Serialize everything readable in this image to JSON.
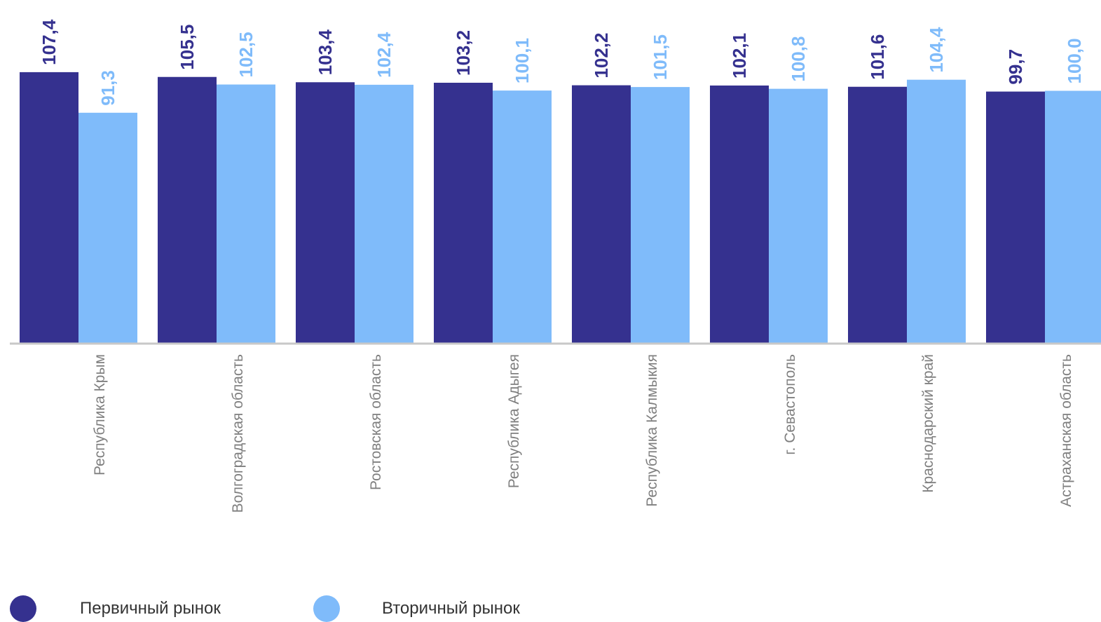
{
  "chart_data": {
    "type": "bar",
    "title": "",
    "xlabel": "",
    "ylabel": "",
    "categories": [
      "Республика Крым",
      "Волгоградская область",
      "Ростовская область",
      "Республика Адыгея",
      "Республика Калмыкия",
      "г. Севастополь",
      "Краснодарский край",
      "Астраханская область"
    ],
    "series": [
      {
        "name": "Первичный рынок",
        "color": "#35318f",
        "values": [
          107.4,
          105.5,
          103.4,
          103.2,
          102.2,
          102.1,
          101.6,
          99.7
        ],
        "labels": [
          "107,4",
          "105,5",
          "103,4",
          "103,2",
          "102,2",
          "102,1",
          "101,6",
          "99,7"
        ]
      },
      {
        "name": "Вторичный рынок",
        "color": "#7fbbfa",
        "values": [
          91.3,
          102.5,
          102.4,
          100.1,
          101.5,
          100.8,
          104.4,
          100.0
        ],
        "labels": [
          "91,3",
          "102,5",
          "102,4",
          "100,1",
          "101,5",
          "100,8",
          "104,4",
          "100,0"
        ]
      }
    ],
    "legend_position": "bottom-left",
    "grid": false,
    "axis_color": "#c8c8c8"
  },
  "legend": {
    "items": [
      {
        "label": "Первичный рынок",
        "color": "#35318f"
      },
      {
        "label": "Вторичный рынок",
        "color": "#7fbbfa"
      }
    ]
  }
}
